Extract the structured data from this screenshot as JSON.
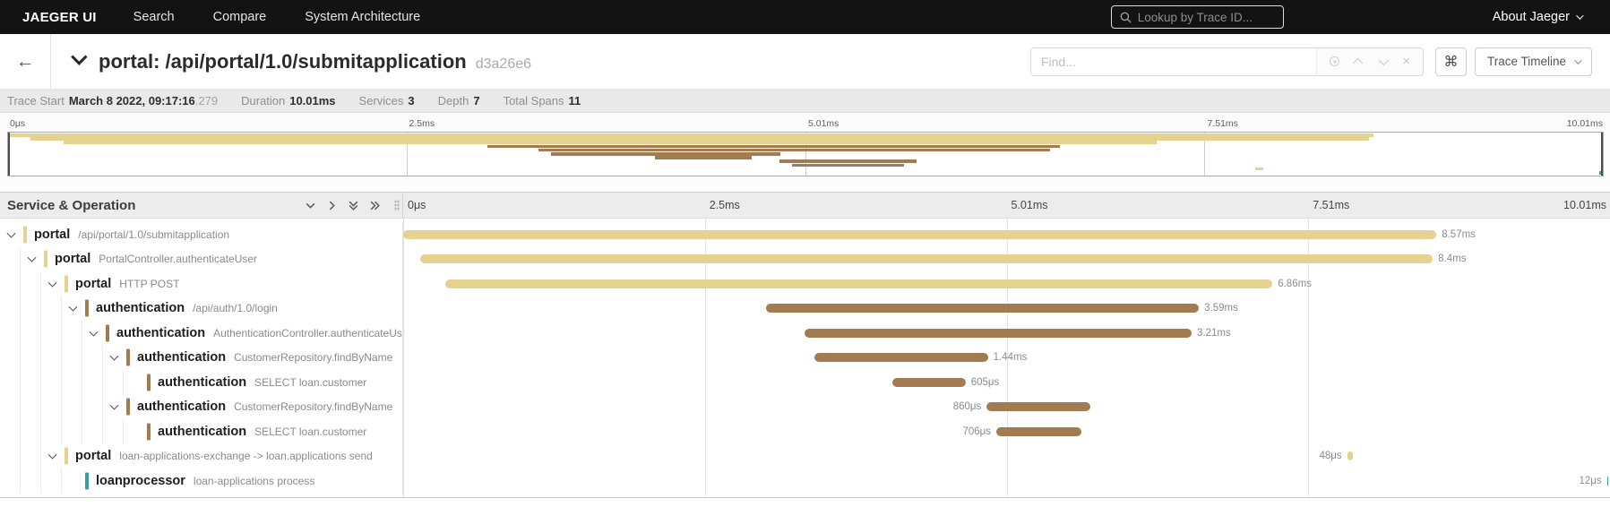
{
  "nav": {
    "brand": "JAEGER UI",
    "items": [
      "Search",
      "Compare",
      "System Architecture"
    ],
    "lookup_placeholder": "Lookup by Trace ID...",
    "about_label": "About Jaeger"
  },
  "trace_header": {
    "title": "portal: /api/portal/1.0/submitapplication",
    "trace_id": "d3a26e6",
    "find_placeholder": "Find...",
    "shortcut_label": "⌘",
    "view_selector_label": "Trace Timeline"
  },
  "summary": {
    "items": [
      {
        "label": "Trace Start",
        "value": "March 8 2022, 09:17:16",
        "suffix": ".279"
      },
      {
        "label": "Duration",
        "value": "10.01ms",
        "suffix": ""
      },
      {
        "label": "Services",
        "value": "3",
        "suffix": ""
      },
      {
        "label": "Depth",
        "value": "7",
        "suffix": ""
      },
      {
        "label": "Total Spans",
        "value": "11",
        "suffix": ""
      }
    ]
  },
  "timeline": {
    "left_header": "Service & Operation",
    "ticks": [
      "0μs",
      "2.5ms",
      "5.01ms",
      "7.51ms",
      "10.01ms"
    ],
    "total_ms": 10.01
  },
  "colors": {
    "khaki": "#e6d28f",
    "brown": "#a27c50",
    "teal": "#3d9d9d"
  },
  "spans": [
    {
      "service": "portal",
      "operation": "/api/portal/1.0/submitapplication",
      "depth": 0,
      "expandable": true,
      "color": "khaki",
      "start_ms": 0,
      "duration_ms": 8.57,
      "duration_label": "8.57ms",
      "label_side": "right"
    },
    {
      "service": "portal",
      "operation": "PortalController.authenticateUser",
      "depth": 1,
      "expandable": true,
      "color": "khaki",
      "start_ms": 0.14,
      "duration_ms": 8.4,
      "duration_label": "8.4ms",
      "label_side": "right"
    },
    {
      "service": "portal",
      "operation": "HTTP POST",
      "depth": 2,
      "expandable": true,
      "color": "khaki",
      "start_ms": 0.35,
      "duration_ms": 6.86,
      "duration_label": "6.86ms",
      "label_side": "right"
    },
    {
      "service": "authentication",
      "operation": "/api/auth/1.0/login",
      "depth": 3,
      "expandable": true,
      "color": "brown",
      "start_ms": 3.01,
      "duration_ms": 3.59,
      "duration_label": "3.59ms",
      "label_side": "right"
    },
    {
      "service": "authentication",
      "operation": "AuthenticationController.authenticateUser",
      "depth": 4,
      "expandable": true,
      "color": "brown",
      "start_ms": 3.33,
      "duration_ms": 3.21,
      "duration_label": "3.21ms",
      "label_side": "right"
    },
    {
      "service": "authentication",
      "operation": "CustomerRepository.findByName",
      "depth": 5,
      "expandable": true,
      "color": "brown",
      "start_ms": 3.41,
      "duration_ms": 1.44,
      "duration_label": "1.44ms",
      "label_side": "right"
    },
    {
      "service": "authentication",
      "operation": "SELECT loan.customer",
      "depth": 6,
      "expandable": false,
      "color": "brown",
      "start_ms": 4.06,
      "duration_ms": 0.605,
      "duration_label": "605μs",
      "label_side": "right"
    },
    {
      "service": "authentication",
      "operation": "CustomerRepository.findByName",
      "depth": 5,
      "expandable": true,
      "color": "brown",
      "start_ms": 4.84,
      "duration_ms": 0.86,
      "duration_label": "860μs",
      "label_side": "left"
    },
    {
      "service": "authentication",
      "operation": "SELECT loan.customer",
      "depth": 6,
      "expandable": false,
      "color": "brown",
      "start_ms": 4.92,
      "duration_ms": 0.706,
      "duration_label": "706μs",
      "label_side": "left"
    },
    {
      "service": "portal",
      "operation": "loan-applications-exchange -> loan.applications send",
      "depth": 2,
      "expandable": true,
      "color": "khaki",
      "start_ms": 7.83,
      "duration_ms": 0.048,
      "duration_label": "48μs",
      "label_side": "left"
    },
    {
      "service": "loanprocessor",
      "operation": "loan-applications process",
      "depth": 3,
      "expandable": false,
      "color": "teal",
      "start_ms": 9.985,
      "duration_ms": 0.012,
      "duration_label": "12μs",
      "label_side": "left"
    }
  ]
}
